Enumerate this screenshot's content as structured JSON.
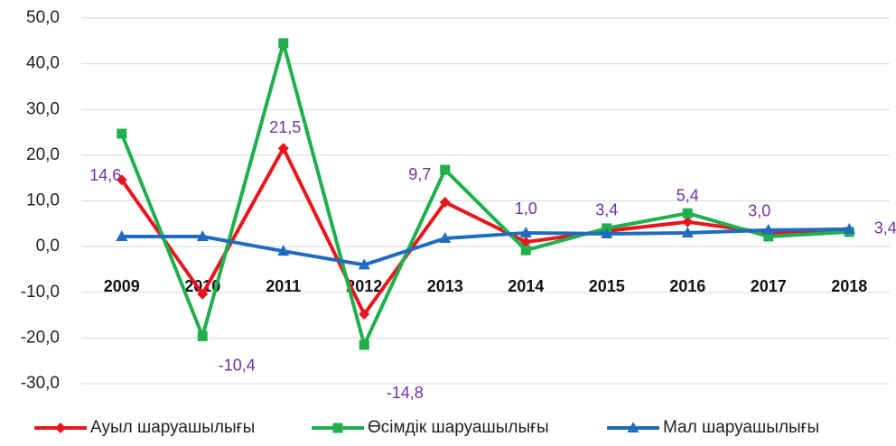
{
  "chart_data": {
    "type": "line",
    "categories": [
      "2009",
      "2010",
      "2011",
      "2012",
      "2013",
      "2014",
      "2015",
      "2016",
      "2017",
      "2018"
    ],
    "series": [
      {
        "name": "Ауыл шаруашылығы",
        "color": "#e8161c",
        "marker": "diamond",
        "values": [
          14.6,
          -10.4,
          21.5,
          -14.8,
          9.7,
          1.0,
          3.4,
          5.4,
          3.0,
          3.4
        ],
        "value_labels": [
          "14,6",
          "-10,4",
          "21,5",
          "-14,8",
          "9,7",
          "1,0",
          "3,4",
          "5,4",
          "3,0",
          "3,4"
        ],
        "label_color": "#7030a0"
      },
      {
        "name": "Өсімдік шаруашылығы",
        "color": "#1fb04d",
        "marker": "square",
        "values": [
          24.7,
          -19.6,
          44.5,
          -21.5,
          16.8,
          -0.8,
          4.0,
          7.3,
          2.2,
          3.2
        ]
      },
      {
        "name": "Мал шаруашылығы",
        "color": "#1f6cbf",
        "marker": "triangle",
        "values": [
          2.2,
          2.2,
          -1.0,
          -4.0,
          1.8,
          3.0,
          2.8,
          3.0,
          3.6,
          3.8
        ]
      }
    ],
    "ylim": [
      -30,
      50
    ],
    "yticks": [
      {
        "value": -30,
        "label": "-30,0"
      },
      {
        "value": -20,
        "label": "-20,0"
      },
      {
        "value": -10,
        "label": "-10,0"
      },
      {
        "value": 0,
        "label": "0,0"
      },
      {
        "value": 10,
        "label": "10,0"
      },
      {
        "value": 20,
        "label": "20,0"
      },
      {
        "value": 30,
        "label": "30,0"
      },
      {
        "value": 40,
        "label": "40,0"
      },
      {
        "value": 50,
        "label": "50,0"
      }
    ],
    "grid": true,
    "legend": "bottom"
  }
}
